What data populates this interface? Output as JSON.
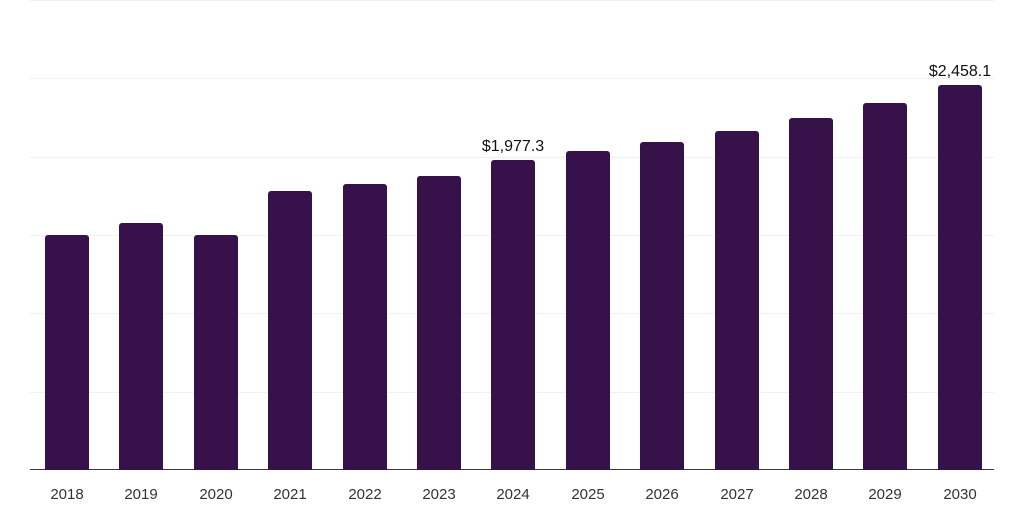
{
  "chart_data": {
    "type": "bar",
    "title": "",
    "xlabel": "",
    "ylabel": "",
    "categories": [
      "2018",
      "2019",
      "2020",
      "2021",
      "2022",
      "2023",
      "2024",
      "2025",
      "2026",
      "2027",
      "2028",
      "2029",
      "2030"
    ],
    "values": [
      1502,
      1578,
      1502,
      1783,
      1828,
      1879,
      1977.3,
      2038,
      2096,
      2166,
      2249,
      2345,
      2458.1
    ],
    "data_labels": {
      "2024": "$1,977.3",
      "2030": "$2,458.1"
    },
    "ylim": [
      0,
      3000
    ],
    "gridlines": [
      0,
      500,
      1000,
      1500,
      2000,
      2500,
      3000
    ],
    "grid": true,
    "y_ticks_visible": false,
    "legend": null,
    "bar_color": "#37114a"
  }
}
